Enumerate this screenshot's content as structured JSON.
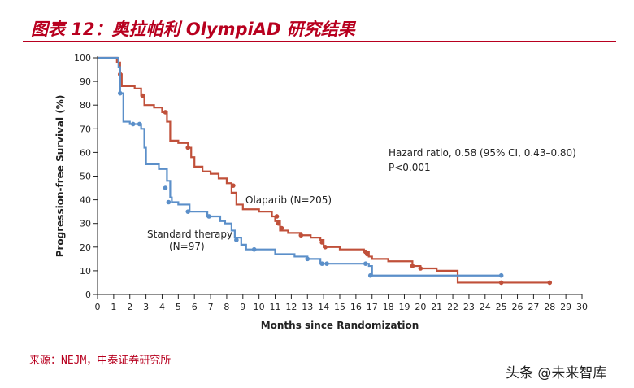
{
  "header": {
    "title": "图表 12：奥拉帕利 OlympiAD 研究结果"
  },
  "footer": {
    "source": "来源：NEJM，中泰证券研究所",
    "watermark": "头条 @未来智库"
  },
  "chart_data": {
    "type": "line",
    "title": "",
    "xlabel": "Months since Randomization",
    "ylabel": "Progression-free Survival (%)",
    "xlim": [
      0,
      30
    ],
    "ylim": [
      0,
      100
    ],
    "xticks": [
      0,
      1,
      2,
      3,
      4,
      5,
      6,
      7,
      8,
      9,
      10,
      11,
      12,
      13,
      14,
      15,
      16,
      17,
      18,
      19,
      20,
      21,
      22,
      23,
      24,
      25,
      26,
      27,
      28,
      29,
      30
    ],
    "yticks": [
      0,
      10,
      20,
      30,
      40,
      50,
      60,
      70,
      80,
      90,
      100
    ],
    "annotations": {
      "hazard": "Hazard ratio, 0.58 (95% CI, 0.43–0.80)",
      "pvalue": "P<0.001",
      "olaparib_label": "Olaparib (N=205)",
      "standard_label_line1": "Standard therapy",
      "standard_label_line2": "(N=97)"
    },
    "series": [
      {
        "name": "Olaparib (N=205)",
        "color": "#c0503a",
        "step_points": [
          [
            0,
            100
          ],
          [
            1.2,
            98
          ],
          [
            1.4,
            93
          ],
          [
            1.5,
            88
          ],
          [
            2.3,
            87
          ],
          [
            2.7,
            84
          ],
          [
            2.9,
            80
          ],
          [
            3.5,
            79
          ],
          [
            4.0,
            77
          ],
          [
            4.3,
            73
          ],
          [
            4.5,
            65
          ],
          [
            5.0,
            64
          ],
          [
            5.6,
            62
          ],
          [
            5.8,
            58
          ],
          [
            6.0,
            54
          ],
          [
            6.5,
            52
          ],
          [
            7.0,
            51
          ],
          [
            7.5,
            49
          ],
          [
            8.0,
            47
          ],
          [
            8.3,
            43
          ],
          [
            8.6,
            38
          ],
          [
            9.0,
            36
          ],
          [
            10.0,
            35
          ],
          [
            10.8,
            33
          ],
          [
            11.0,
            31
          ],
          [
            11.3,
            27
          ],
          [
            11.8,
            26
          ],
          [
            12.6,
            25
          ],
          [
            13.2,
            24
          ],
          [
            13.8,
            23
          ],
          [
            14.0,
            20
          ],
          [
            15.0,
            19
          ],
          [
            16.5,
            18
          ],
          [
            16.8,
            16
          ],
          [
            17.0,
            15
          ],
          [
            18.0,
            14
          ],
          [
            19.5,
            12
          ],
          [
            20.0,
            11
          ],
          [
            21.0,
            10
          ],
          [
            22.3,
            5
          ],
          [
            28.0,
            5
          ]
        ],
        "censor_marks": [
          [
            1.4,
            93
          ],
          [
            2.8,
            84
          ],
          [
            4.2,
            77
          ],
          [
            5.6,
            62
          ],
          [
            8.4,
            46
          ],
          [
            11.1,
            33
          ],
          [
            11.2,
            30
          ],
          [
            11.4,
            28
          ],
          [
            12.6,
            25
          ],
          [
            13.9,
            22
          ],
          [
            14.1,
            20
          ],
          [
            16.6,
            18
          ],
          [
            16.7,
            17
          ],
          [
            19.5,
            12
          ],
          [
            20.0,
            11
          ],
          [
            25.0,
            5
          ],
          [
            28.0,
            5
          ]
        ]
      },
      {
        "name": "Standard therapy (N=97)",
        "color": "#5b8fc9",
        "step_points": [
          [
            0,
            100
          ],
          [
            1.3,
            96
          ],
          [
            1.4,
            85
          ],
          [
            1.6,
            73
          ],
          [
            2.0,
            72
          ],
          [
            2.7,
            70
          ],
          [
            2.9,
            62
          ],
          [
            3.0,
            55
          ],
          [
            3.8,
            53
          ],
          [
            4.3,
            48
          ],
          [
            4.5,
            41
          ],
          [
            4.6,
            39
          ],
          [
            5.0,
            38
          ],
          [
            5.7,
            35
          ],
          [
            6.8,
            33
          ],
          [
            7.6,
            31
          ],
          [
            7.9,
            30
          ],
          [
            8.3,
            27
          ],
          [
            8.5,
            24
          ],
          [
            8.9,
            21
          ],
          [
            9.2,
            19
          ],
          [
            10.0,
            19
          ],
          [
            11.0,
            17
          ],
          [
            12.2,
            16
          ],
          [
            13.0,
            15
          ],
          [
            13.8,
            13
          ],
          [
            16.8,
            12
          ],
          [
            17.0,
            8
          ],
          [
            25.0,
            8
          ]
        ],
        "censor_marks": [
          [
            1.4,
            85
          ],
          [
            2.2,
            72
          ],
          [
            2.6,
            72
          ],
          [
            4.2,
            45
          ],
          [
            4.4,
            39
          ],
          [
            5.6,
            35
          ],
          [
            6.9,
            33
          ],
          [
            8.6,
            23
          ],
          [
            9.7,
            19
          ],
          [
            13.0,
            15
          ],
          [
            13.9,
            13
          ],
          [
            14.2,
            13
          ],
          [
            16.6,
            13
          ],
          [
            16.9,
            8
          ],
          [
            25.0,
            8
          ]
        ]
      }
    ]
  }
}
